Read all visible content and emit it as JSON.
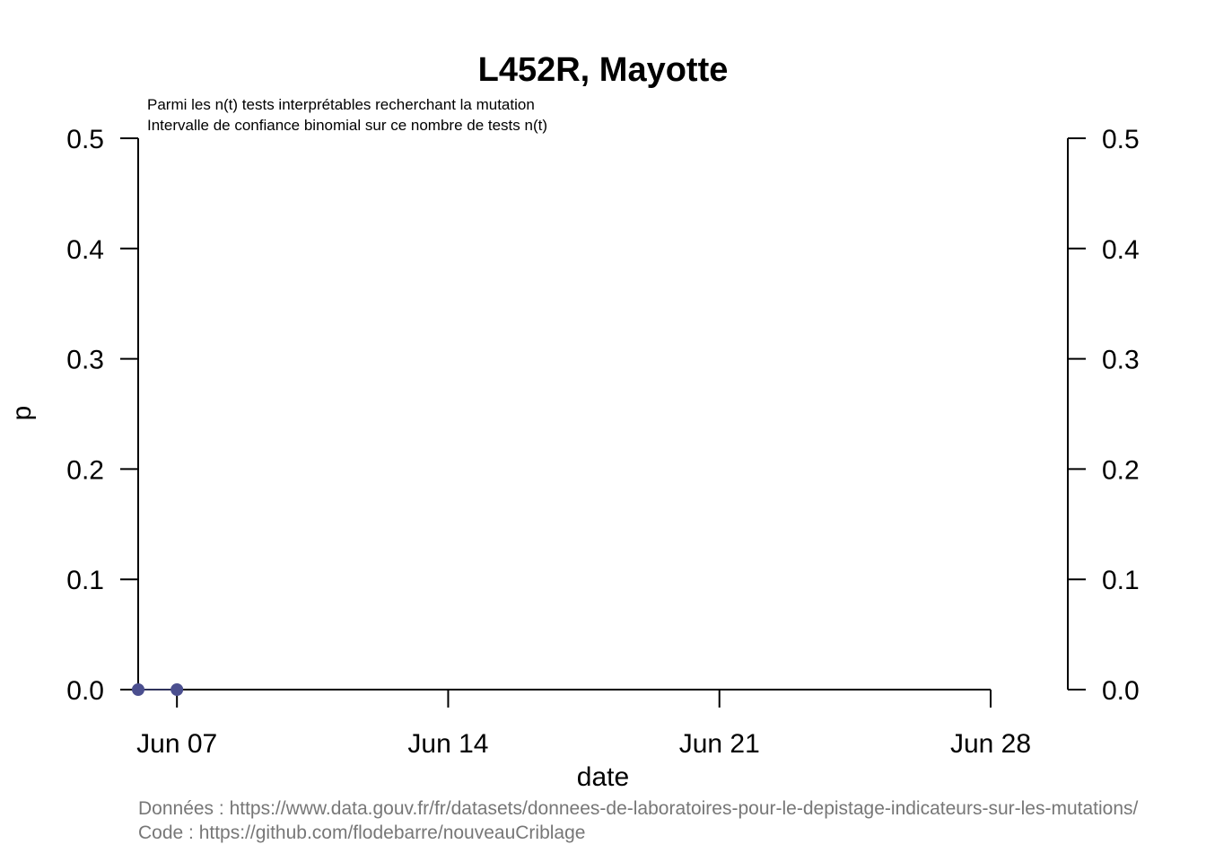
{
  "chart_data": {
    "type": "line",
    "title": "L452R, Mayotte",
    "subtitle_lines": [
      "Parmi les n(t) tests interprétables recherchant la mutation",
      "Intervalle de confiance binomial sur ce nombre de tests n(t)"
    ],
    "xlabel": "date",
    "ylabel": "p",
    "x_ticks": [
      "Jun 07",
      "Jun 14",
      "Jun 21",
      "Jun 28"
    ],
    "y_ticks": [
      "0.0",
      "0.1",
      "0.2",
      "0.3",
      "0.4",
      "0.5"
    ],
    "ylim": [
      0,
      0.5
    ],
    "xlim": [
      "2021-06-06",
      "2021-06-28"
    ],
    "grid": false,
    "right_axis": true,
    "series": [
      {
        "color": "#4b4f8f",
        "points": [
          {
            "x": "2021-06-06",
            "y": 0.0
          },
          {
            "x": "2021-06-07",
            "y": 0.0
          }
        ]
      }
    ],
    "source_lines": [
      "Données : https://www.data.gouv.fr/fr/datasets/donnees-de-laboratoires-pour-le-depistage-indicateurs-sur-les-mutations/",
      "Code : https://github.com/flodebarre/nouveauCriblage"
    ]
  }
}
